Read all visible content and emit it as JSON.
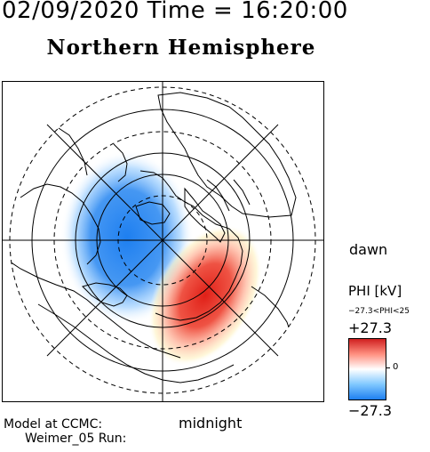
{
  "header": {
    "timestamp": "02/09/2020 Time = 16:20:00",
    "hemisphere": "Northern Hemisphere"
  },
  "map": {
    "labels": {
      "dawn": "dawn",
      "midnight": "midnight"
    },
    "potential_pattern": {
      "negative_cell_color": "#1e7ff0",
      "positive_cell_color": "#d02020"
    }
  },
  "colorbar": {
    "title": "PHI [kV]",
    "range_text": "−27.3<PHI<25",
    "max_label": "+27.3",
    "zero_label": "0",
    "min_label": "−27.3",
    "colors": {
      "max": "#d02020",
      "mid": "#ffffff",
      "min": "#1e7ff0"
    }
  },
  "footer": {
    "model_line1": "Model at CCMC:",
    "model_line2": "Weimer_05 Run:"
  }
}
